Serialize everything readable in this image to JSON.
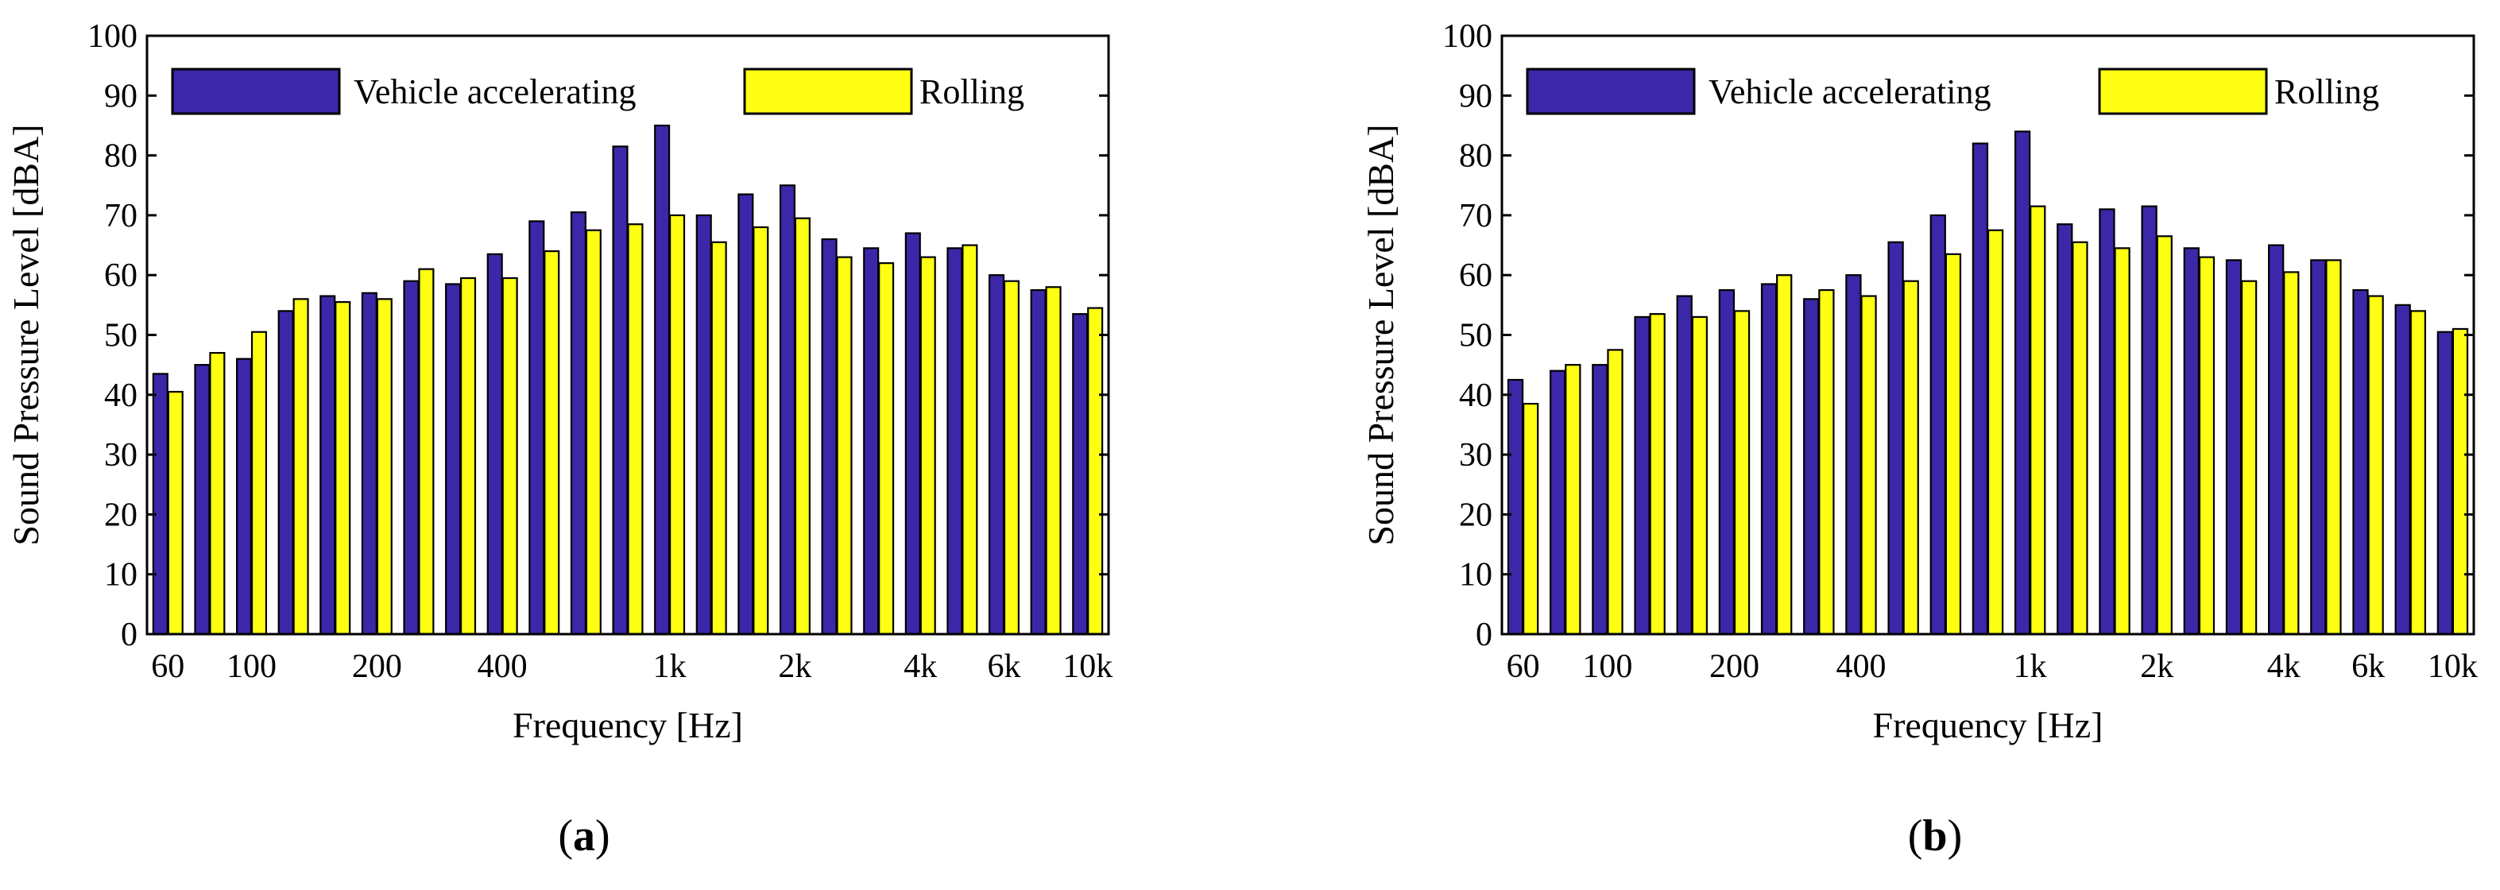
{
  "colors": {
    "vehicle": "#3c27a8",
    "rolling": "#ffff14",
    "axis": "#000000"
  },
  "chart_data": [
    {
      "type": "bar",
      "panel": "a",
      "caption_paren_open": "(",
      "caption_letter": "a",
      "caption_paren_close": ")",
      "xlabel": "Frequency [Hz]",
      "ylabel": "Sound Pressure Level [dBA]",
      "ylim": [
        0,
        100
      ],
      "yticks": [
        0,
        10,
        20,
        30,
        40,
        50,
        60,
        70,
        80,
        90,
        100
      ],
      "xtick_labels": [
        {
          "label": "60",
          "band": 0
        },
        {
          "label": "100",
          "band": 2
        },
        {
          "label": "200",
          "band": 5
        },
        {
          "label": "400",
          "band": 8
        },
        {
          "label": "1k",
          "band": 12
        },
        {
          "label": "2k",
          "band": 15
        },
        {
          "label": "4k",
          "band": 18
        },
        {
          "label": "6k",
          "band": 20
        },
        {
          "label": "10k",
          "band": 22
        }
      ],
      "legend": [
        "Vehicle accelerating",
        "Rolling"
      ],
      "legend_position": "top",
      "series": [
        {
          "name": "Vehicle accelerating",
          "color_key": "vehicle",
          "values": [
            43.5,
            45.0,
            46.0,
            54.0,
            56.5,
            57.0,
            59.0,
            58.5,
            63.5,
            69.0,
            70.5,
            81.5,
            85.0,
            70.0,
            73.5,
            75.0,
            66.0,
            64.5,
            67.0,
            64.5,
            60.0,
            57.5,
            53.5
          ]
        },
        {
          "name": "Rolling",
          "color_key": "rolling",
          "values": [
            40.5,
            47.0,
            50.5,
            56.0,
            55.5,
            56.0,
            61.0,
            59.5,
            59.5,
            64.0,
            67.5,
            68.5,
            70.0,
            65.5,
            68.0,
            69.5,
            63.0,
            62.0,
            63.0,
            65.0,
            59.0,
            58.0,
            54.5
          ]
        }
      ]
    },
    {
      "type": "bar",
      "panel": "b",
      "caption_paren_open": "(",
      "caption_letter": "b",
      "caption_paren_close": ")",
      "xlabel": "Frequency [Hz]",
      "ylabel": "Sound Pressure Level [dBA]",
      "ylim": [
        0,
        100
      ],
      "yticks": [
        0,
        10,
        20,
        30,
        40,
        50,
        60,
        70,
        80,
        90,
        100
      ],
      "xtick_labels": [
        {
          "label": "60",
          "band": 0
        },
        {
          "label": "100",
          "band": 2
        },
        {
          "label": "200",
          "band": 5
        },
        {
          "label": "400",
          "band": 8
        },
        {
          "label": "1k",
          "band": 12
        },
        {
          "label": "2k",
          "band": 15
        },
        {
          "label": "4k",
          "band": 18
        },
        {
          "label": "6k",
          "band": 20
        },
        {
          "label": "10k",
          "band": 22
        }
      ],
      "legend": [
        "Vehicle accelerating",
        "Rolling"
      ],
      "legend_position": "top",
      "series": [
        {
          "name": "Vehicle accelerating",
          "color_key": "vehicle",
          "values": [
            42.5,
            44.0,
            45.0,
            53.0,
            56.5,
            57.5,
            58.5,
            56.0,
            60.0,
            65.5,
            70.0,
            82.0,
            84.0,
            68.5,
            71.0,
            71.5,
            64.5,
            62.5,
            65.0,
            62.5,
            57.5,
            55.0,
            50.5
          ]
        },
        {
          "name": "Rolling",
          "color_key": "rolling",
          "values": [
            38.5,
            45.0,
            47.5,
            53.5,
            53.0,
            54.0,
            60.0,
            57.5,
            56.5,
            59.0,
            63.5,
            67.5,
            71.5,
            65.5,
            64.5,
            66.5,
            63.0,
            59.0,
            60.5,
            62.5,
            56.5,
            54.0,
            51.0
          ]
        }
      ]
    }
  ]
}
